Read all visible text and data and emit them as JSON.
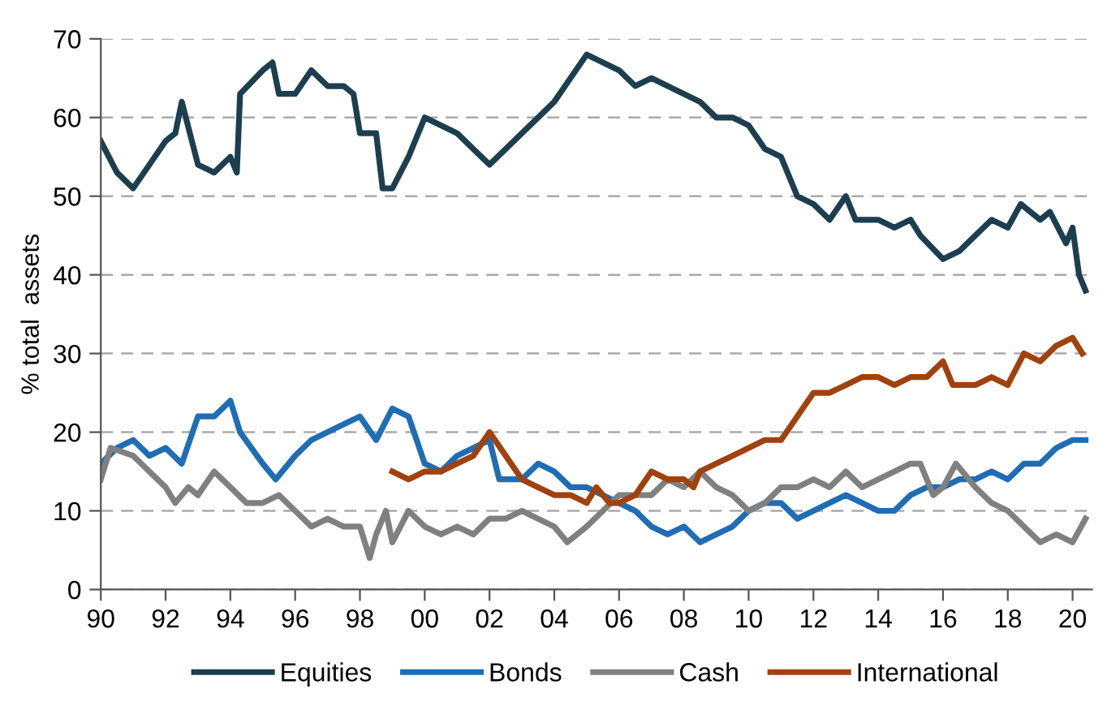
{
  "chart_data": {
    "type": "line",
    "ylabel": "% total  assets",
    "xlim": [
      1990,
      2020.6
    ],
    "ylim": [
      0,
      70
    ],
    "xticks": [
      {
        "value": 1990,
        "label": "90"
      },
      {
        "value": 1992,
        "label": "92"
      },
      {
        "value": 1994,
        "label": "94"
      },
      {
        "value": 1996,
        "label": "96"
      },
      {
        "value": 1998,
        "label": "98"
      },
      {
        "value": 2000,
        "label": "00"
      },
      {
        "value": 2002,
        "label": "02"
      },
      {
        "value": 2004,
        "label": "04"
      },
      {
        "value": 2006,
        "label": "06"
      },
      {
        "value": 2008,
        "label": "08"
      },
      {
        "value": 2010,
        "label": "10"
      },
      {
        "value": 2012,
        "label": "12"
      },
      {
        "value": 2014,
        "label": "14"
      },
      {
        "value": 2016,
        "label": "16"
      },
      {
        "value": 2018,
        "label": "18"
      },
      {
        "value": 2020,
        "label": "20"
      }
    ],
    "yticks": [
      0,
      10,
      20,
      30,
      40,
      50,
      60,
      70
    ],
    "grid": "y",
    "legend": "bottom",
    "marker": "none",
    "line_style": "solid",
    "series": [
      {
        "name": "Equities",
        "color": "#1c3f4f",
        "x": [
          1990,
          1990.5,
          1991,
          1991.5,
          1992,
          1992.3,
          1992.5,
          1993,
          1993.5,
          1994,
          1994.2,
          1994.3,
          1995,
          1995.3,
          1995.5,
          1996,
          1996.5,
          1997,
          1997.5,
          1997.8,
          1998,
          1998.5,
          1998.7,
          1999,
          1999.5,
          2000,
          2000.5,
          2001,
          2001.5,
          2002,
          2002.5,
          2003,
          2003.5,
          2004,
          2004.5,
          2005,
          2005.5,
          2006,
          2006.5,
          2007,
          2007.5,
          2008,
          2008.5,
          2009,
          2009.5,
          2010,
          2010.5,
          2011,
          2011.5,
          2012,
          2012.5,
          2013,
          2013.3,
          2014,
          2014.5,
          2015,
          2015.3,
          2016,
          2016.5,
          2017,
          2017.5,
          2018,
          2018.4,
          2019,
          2019.3,
          2019.8,
          2020,
          2020.2,
          2020.4
        ],
        "values": [
          57,
          53,
          51,
          54,
          57,
          58,
          62,
          54,
          53,
          55,
          53,
          63,
          66,
          67,
          63,
          63,
          66,
          64,
          64,
          63,
          58,
          58,
          51,
          51,
          55,
          60,
          59,
          58,
          56,
          54,
          56,
          58,
          60,
          62,
          65,
          68,
          67,
          66,
          64,
          65,
          64,
          63,
          62,
          60,
          60,
          59,
          56,
          55,
          50,
          49,
          47,
          50,
          47,
          47,
          46,
          47,
          45,
          42,
          43,
          45,
          47,
          46,
          49,
          47,
          48,
          44,
          46,
          40,
          38
        ]
      },
      {
        "name": "Bonds",
        "color": "#1f6db5",
        "x": [
          1990,
          1990.5,
          1991,
          1991.5,
          1992,
          1992.5,
          1993,
          1993.5,
          1994,
          1994.3,
          1995,
          1995.4,
          1996,
          1996.5,
          1997,
          1997.5,
          1998,
          1998.5,
          1999,
          1999.5,
          2000,
          2000.5,
          2001,
          2001.5,
          2002,
          2002.3,
          2003,
          2003.5,
          2004,
          2004.5,
          2005,
          2006,
          2006.5,
          2007,
          2007.5,
          2008,
          2008.5,
          2009,
          2009.5,
          2010,
          2010.5,
          2011,
          2011.5,
          2012,
          2012.5,
          2013,
          2013.5,
          2014,
          2014.5,
          2015,
          2015.5,
          2016,
          2016.5,
          2017,
          2017.5,
          2018,
          2018.5,
          2019,
          2019.5,
          2020,
          2020.4
        ],
        "values": [
          16,
          18,
          19,
          17,
          18,
          16,
          22,
          22,
          24,
          20,
          16,
          14,
          17,
          19,
          20,
          21,
          22,
          19,
          23,
          22,
          16,
          15,
          17,
          18,
          19,
          14,
          14,
          16,
          15,
          13,
          13,
          11,
          10,
          8,
          7,
          8,
          6,
          7,
          8,
          10,
          11,
          11,
          9,
          10,
          11,
          12,
          11,
          10,
          10,
          12,
          13,
          13,
          14,
          14,
          15,
          14,
          16,
          16,
          18,
          19,
          19
        ]
      },
      {
        "name": "Cash",
        "color": "#808080",
        "x": [
          1990,
          1990.3,
          1991,
          1991.5,
          1992,
          1992.3,
          1992.7,
          1993,
          1993.5,
          1994,
          1994.5,
          1995,
          1995.5,
          1996,
          1996.5,
          1997,
          1997.5,
          1998,
          1998.3,
          1998.5,
          1998.8,
          1999,
          1999.5,
          2000,
          2000.5,
          2001,
          2001.5,
          2002,
          2002.5,
          2003,
          2003.5,
          2004,
          2004.4,
          2005,
          2005.5,
          2006,
          2006.5,
          2007,
          2007.5,
          2008,
          2008.5,
          2009,
          2009.5,
          2010,
          2010.5,
          2011,
          2011.5,
          2012,
          2012.5,
          2013,
          2013.5,
          2014,
          2014.5,
          2015,
          2015.3,
          2015.7,
          2016,
          2016.4,
          2017,
          2017.5,
          2018,
          2018.5,
          2019,
          2019.5,
          2020,
          2020.4
        ],
        "values": [
          14,
          18,
          17,
          15,
          13,
          11,
          13,
          12,
          15,
          13,
          11,
          11,
          12,
          10,
          8,
          9,
          8,
          8,
          4,
          7,
          10,
          6,
          10,
          8,
          7,
          8,
          7,
          9,
          9,
          10,
          9,
          8,
          6,
          8,
          10,
          12,
          12,
          12,
          14,
          13,
          15,
          13,
          12,
          10,
          11,
          13,
          13,
          14,
          13,
          15,
          13,
          14,
          15,
          16,
          16,
          12,
          13,
          16,
          13,
          11,
          10,
          8,
          6,
          7,
          6,
          9
        ]
      },
      {
        "name": "International",
        "color": "#a0420f",
        "x": [
          1999,
          1999.5,
          2000,
          2000.5,
          2001,
          2001.5,
          2002,
          2002.5,
          2003,
          2003.5,
          2004,
          2004.5,
          2005,
          2005.3,
          2005.7,
          2006,
          2006.5,
          2007,
          2007.5,
          2008,
          2008.3,
          2008.5,
          2009,
          2009.5,
          2010,
          2010.5,
          2011,
          2011.5,
          2012,
          2012.5,
          2013,
          2013.5,
          2014,
          2014.5,
          2015,
          2015.5,
          2016,
          2016.3,
          2017,
          2017.5,
          2018,
          2018.5,
          2019,
          2019.5,
          2020,
          2020.3
        ],
        "values": [
          15,
          14,
          15,
          15,
          16,
          17,
          20,
          17,
          14,
          13,
          12,
          12,
          11,
          13,
          11,
          11,
          12,
          15,
          14,
          14,
          13,
          15,
          16,
          17,
          18,
          19,
          19,
          22,
          25,
          25,
          26,
          27,
          27,
          26,
          27,
          27,
          29,
          26,
          26,
          27,
          26,
          30,
          29,
          31,
          32,
          30
        ]
      }
    ]
  }
}
